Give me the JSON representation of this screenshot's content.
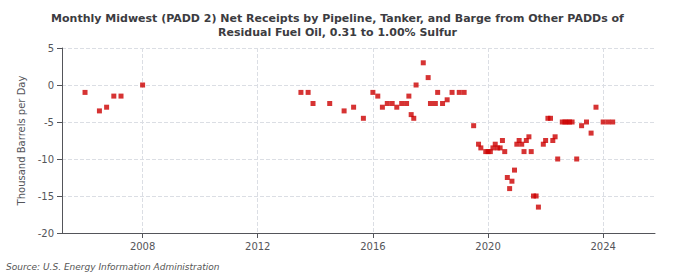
{
  "chart_data": {
    "type": "scatter",
    "title": "Monthly Midwest (PADD 2) Net Receipts by Pipeline, Tanker, and Barge from Other PADDs of\nResidual Fuel Oil, 0.31 to 1.00% Sulfur",
    "ylabel": "Thousand Barrels per Day",
    "source": "Source: U.S. Energy Information Administration",
    "ylim": [
      -20,
      5
    ],
    "yticks": [
      -20,
      -15,
      -10,
      -5,
      0,
      5
    ],
    "xlim": [
      2005.2,
      2025.8
    ],
    "xticks": [
      2008,
      2012,
      2016,
      2020,
      2024
    ],
    "color": "#cc0000",
    "marker": "square",
    "grid": true,
    "x": [
      2006.0,
      2006.5,
      2006.75,
      2007.0,
      2007.25,
      2008.0,
      2013.5,
      2013.75,
      2013.92,
      2014.5,
      2015.0,
      2015.33,
      2015.67,
      2016.0,
      2016.17,
      2016.33,
      2016.5,
      2016.67,
      2016.83,
      2017.0,
      2017.17,
      2017.25,
      2017.33,
      2017.42,
      2017.5,
      2017.75,
      2017.92,
      2018.0,
      2018.17,
      2018.25,
      2018.42,
      2018.58,
      2018.75,
      2019.0,
      2019.17,
      2019.5,
      2019.67,
      2019.75,
      2019.92,
      2020.0,
      2020.08,
      2020.17,
      2020.25,
      2020.33,
      2020.42,
      2020.5,
      2020.58,
      2020.67,
      2020.75,
      2020.83,
      2020.92,
      2021.0,
      2021.08,
      2021.17,
      2021.25,
      2021.33,
      2021.42,
      2021.5,
      2021.58,
      2021.67,
      2021.75,
      2021.92,
      2022.0,
      2022.08,
      2022.17,
      2022.25,
      2022.33,
      2022.42,
      2022.58,
      2022.67,
      2022.75,
      2022.83,
      2022.92,
      2023.08,
      2023.25,
      2023.42,
      2023.58,
      2023.75,
      2024.0,
      2024.17,
      2024.33
    ],
    "values": [
      -1.0,
      -3.5,
      -3.0,
      -1.5,
      -1.5,
      0.0,
      -1.0,
      -1.0,
      -2.5,
      -2.5,
      -3.5,
      -3.0,
      -4.5,
      -1.0,
      -1.5,
      -3.0,
      -2.5,
      -2.5,
      -3.0,
      -2.5,
      -2.5,
      -1.5,
      -4.0,
      -4.5,
      0.0,
      3.0,
      1.0,
      -2.5,
      -2.5,
      -1.0,
      -2.5,
      -2.0,
      -1.0,
      -1.0,
      -1.0,
      -5.5,
      -8.0,
      -8.5,
      -9.0,
      -9.0,
      -9.0,
      -8.5,
      -8.0,
      -8.5,
      -8.5,
      -7.5,
      -9.0,
      -12.5,
      -14.0,
      -13.0,
      -11.5,
      -8.0,
      -7.5,
      -8.0,
      -9.0,
      -7.5,
      -7.0,
      -9.0,
      -15.0,
      -15.0,
      -16.5,
      -8.0,
      -7.5,
      -4.5,
      -4.5,
      -7.5,
      -7.0,
      -10.0,
      -5.0,
      -5.0,
      -5.0,
      -5.0,
      -5.0,
      -10.0,
      -5.5,
      -5.0,
      -6.5,
      -3.0,
      -5.0,
      -5.0,
      -5.0
    ]
  }
}
